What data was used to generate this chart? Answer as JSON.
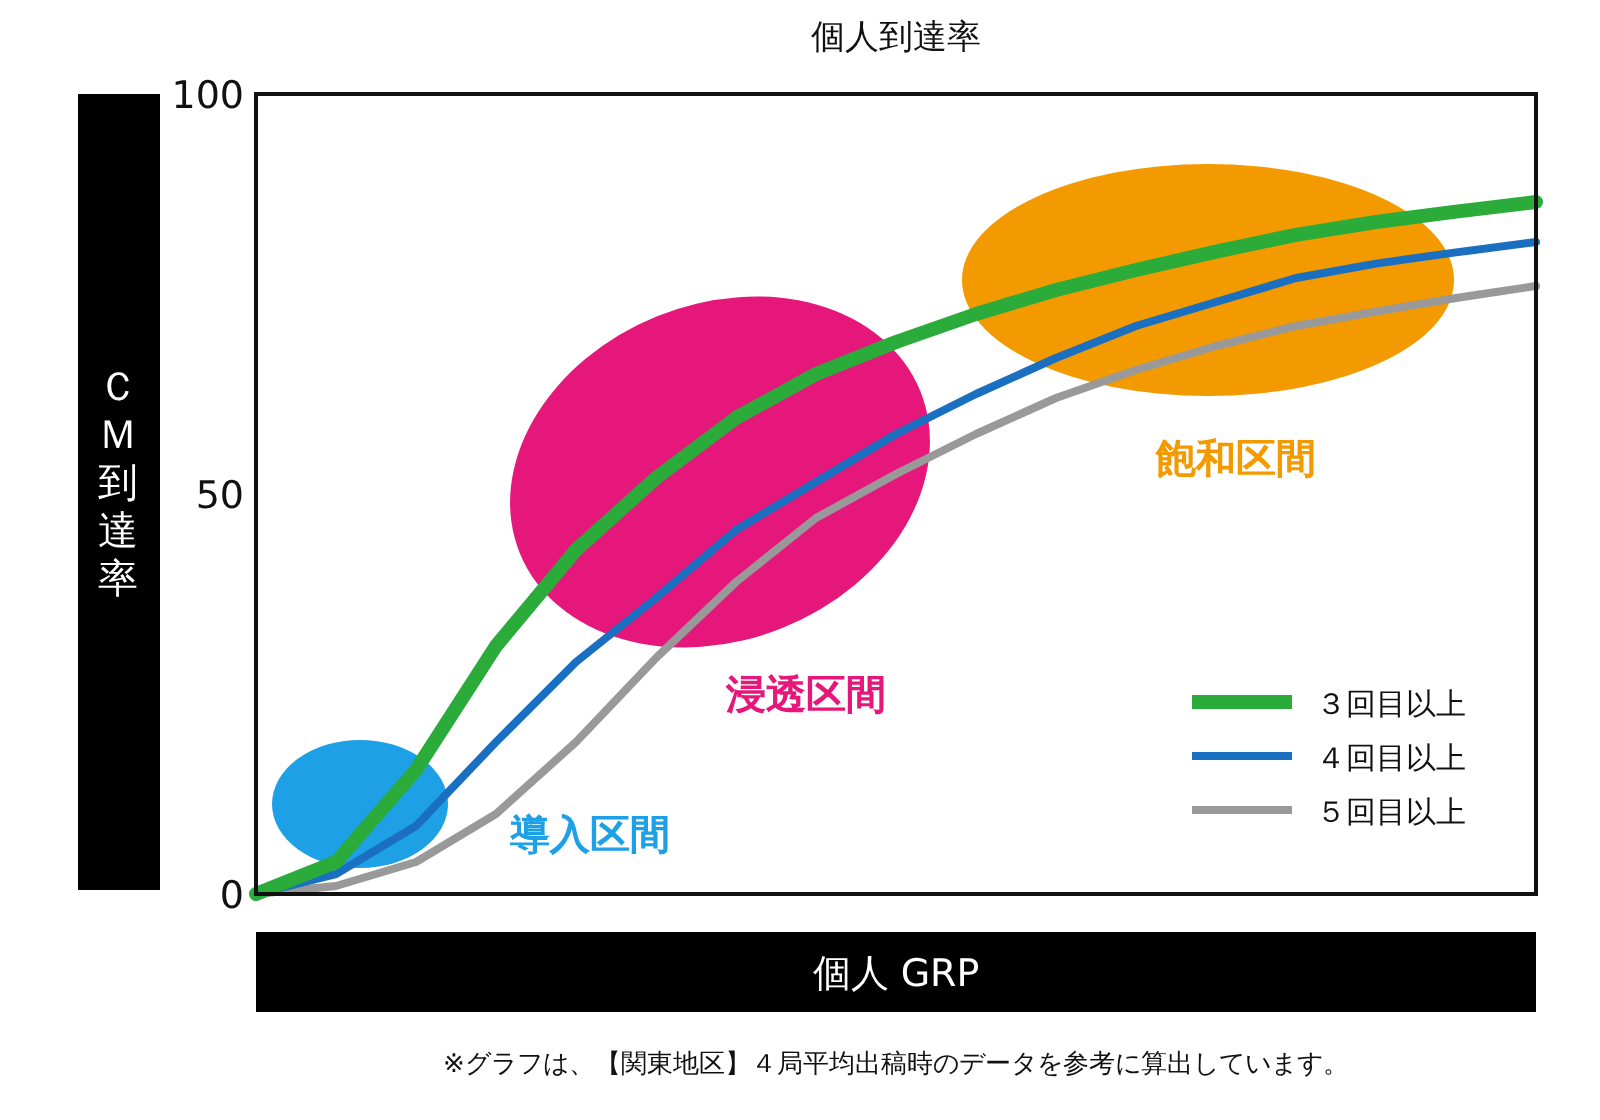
{
  "chart_data": {
    "type": "line",
    "title": "個人到達率",
    "xlabel": "個人 GRP",
    "ylabel": "ＣＭ到達率",
    "categories": [
      null,
      null,
      null,
      null,
      null,
      null,
      null,
      null,
      null,
      null,
      null,
      null,
      null,
      null,
      null,
      null,
      null
    ],
    "series": [
      {
        "name": "３回目以上",
        "color": "#2aab3a",
        "values": [
          0,
          4,
          15.5,
          31,
          43,
          52,
          59.5,
          65,
          69,
          72.5,
          75.5,
          78,
          80.3,
          82.4,
          84,
          85.3,
          86.5
        ]
      },
      {
        "name": "４回目以上",
        "color": "#1a6fc0",
        "values": [
          0,
          2.5,
          8.5,
          19,
          29,
          37,
          45.5,
          51.5,
          57.5,
          62.5,
          67,
          71,
          74,
          77,
          78.8,
          80.2,
          81.5
        ]
      },
      {
        "name": "５回目以上",
        "color": "#999999",
        "values": [
          0,
          1,
          4,
          10,
          19,
          29.5,
          39,
          47,
          52.5,
          57.5,
          62,
          65.5,
          68.5,
          71,
          72.8,
          74.5,
          76
        ]
      }
    ],
    "ylim": [
      0,
      100
    ],
    "yticks": [
      0,
      50,
      100
    ],
    "tick_labels": "y",
    "grid": false,
    "legend": "bottom right",
    "annotations": [
      "導入区間",
      "浸透区間",
      "飽和区間",
      "※グラフは、【関東地区】４局平均出稿時のデータを参考に算出しています。"
    ]
  }
}
